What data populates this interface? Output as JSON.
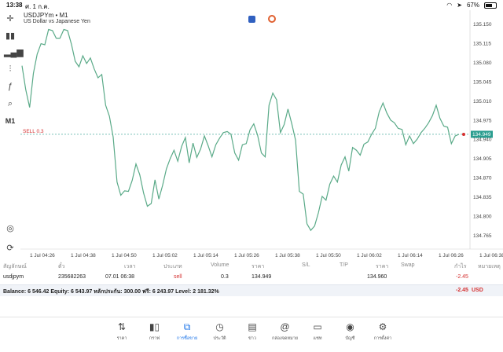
{
  "status_bar": {
    "time": "13:38",
    "date": "ศ. 1 ก.ค.",
    "battery": "67%"
  },
  "chart": {
    "symbol": "USDJPYm • M1",
    "description": "US Dollar vs Japanese Yen",
    "sell_line_label": "SELL 0.3",
    "current_price_label": "134.949",
    "line_color": "#5aaa88",
    "price_axis_color": "#2a9d8f"
  },
  "chart_data": {
    "type": "line",
    "ylim": [
      134.74,
      135.175
    ],
    "y_ticks": [
      135.15,
      135.115,
      135.08,
      135.045,
      135.01,
      134.975,
      134.94,
      134.905,
      134.87,
      134.835,
      134.8,
      134.765
    ],
    "y_tick_labels": [
      "135.150",
      "135.115",
      "135.080",
      "135.045",
      "135.010",
      "134.975",
      "134.940",
      "134.905",
      "134.870",
      "134.835",
      "134.800",
      "134.765"
    ],
    "x_tick_labels": [
      "1 Jul 04:26",
      "1 Jul 04:38",
      "1 Jul 04:50",
      "1 Jul 05:02",
      "1 Jul 05:14",
      "1 Jul 05:26",
      "1 Jul 05:38",
      "1 Jul 05:50",
      "1 Jul 06:02",
      "1 Jul 06:14",
      "1 Jul 06:26",
      "1 Jul 06:38"
    ],
    "sell_level": 134.949,
    "series": [
      {
        "values": [
          135.074,
          135.03,
          134.998,
          135.06,
          135.095,
          135.114,
          135.112,
          135.14,
          135.138,
          135.124,
          135.124,
          135.14,
          135.138,
          135.113,
          135.082,
          135.072,
          135.092,
          135.078,
          135.088,
          135.068,
          135.052,
          135.058,
          135.002,
          134.982,
          134.944,
          134.862,
          134.838,
          134.846,
          134.845,
          134.865,
          134.895,
          134.875,
          134.842,
          134.818,
          134.823,
          134.866,
          134.831,
          134.856,
          134.886,
          134.905,
          134.92,
          134.9,
          134.927,
          134.943,
          134.897,
          134.933,
          134.907,
          134.922,
          134.946,
          134.928,
          134.908,
          134.93,
          134.942,
          134.952,
          134.954,
          134.949,
          134.915,
          134.902,
          134.93,
          134.932,
          134.957,
          134.968,
          134.947,
          134.915,
          134.908,
          135.002,
          135.024,
          135.012,
          134.952,
          134.967,
          134.995,
          134.968,
          134.938,
          134.845,
          134.84,
          134.786,
          134.774,
          134.782,
          134.806,
          134.836,
          134.829,
          134.858,
          134.873,
          134.862,
          134.893,
          134.908,
          134.882,
          134.925,
          134.92,
          134.911,
          134.931,
          134.935,
          134.949,
          134.96,
          134.99,
          135.006,
          134.988,
          134.975,
          134.97,
          134.96,
          134.958,
          134.93,
          134.946,
          134.932,
          134.94,
          134.952,
          134.96,
          134.97,
          134.983,
          135.002,
          134.978,
          134.964,
          134.962,
          134.932,
          134.946,
          134.949
        ]
      }
    ]
  },
  "positions": {
    "headers": [
      "สัญลักษณ์",
      "ตั๋ว",
      "เวลา",
      "ประเภท",
      "Volume",
      "ราคา",
      "S/L",
      "T/P",
      "ราคา",
      "Swap",
      "กำไร",
      "หมายเหตุ"
    ],
    "rows": [
      {
        "symbol": "usdjpym",
        "ticket": "235682263",
        "time": "07.01 06:38",
        "type": "sell",
        "volume": "0.3",
        "open_price": "134.949",
        "sl": "",
        "tp": "",
        "price": "134.960",
        "swap": "",
        "profit": "-2.45",
        "comment": ""
      }
    ],
    "balance_text": "Balance: 6 546.42 Equity: 6 543.97 หลักประกัน: 300.00 ฟรี: 6 243.97 Level: 2 181.32%",
    "total_profit": "-2.45",
    "currency": "USD"
  },
  "nav": {
    "items": [
      {
        "label": "ราคา",
        "icon": "arrows-updown-icon"
      },
      {
        "label": "กราฟ",
        "icon": "candles-icon"
      },
      {
        "label": "การซื้อขาย",
        "icon": "trade-chart-icon"
      },
      {
        "label": "ประวัติ",
        "icon": "history-icon"
      },
      {
        "label": "ข่าว",
        "icon": "news-icon"
      },
      {
        "label": "กล่องจดหมาย",
        "icon": "mail-at-icon"
      },
      {
        "label": "แชท",
        "icon": "chat-icon"
      },
      {
        "label": "บัญชี",
        "icon": "account-icon"
      },
      {
        "label": "การตั้งค่า",
        "icon": "settings-icon"
      }
    ],
    "active_index": 2
  }
}
